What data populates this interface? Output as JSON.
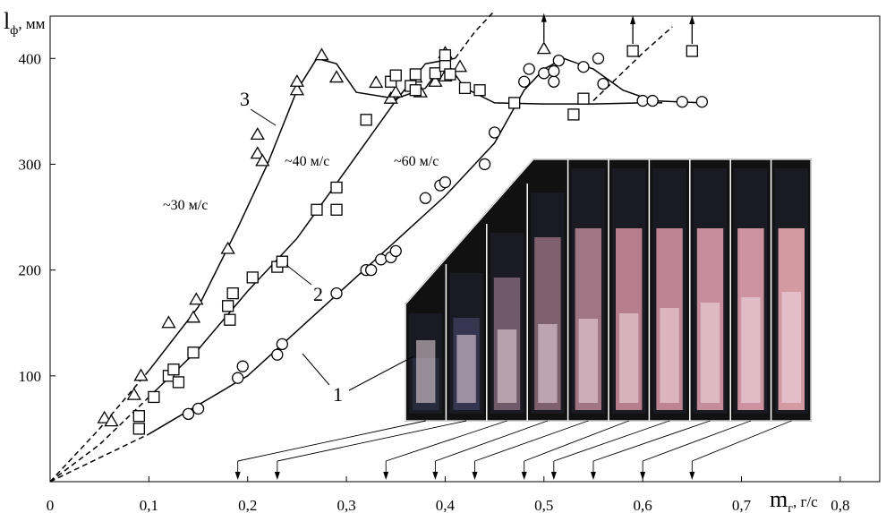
{
  "chart_data": {
    "type": "scatter",
    "title": "",
    "xlabel": {
      "main": "m",
      "sub": "г",
      "unit": ", г/с"
    },
    "ylabel": {
      "main": "l",
      "sub": "ф",
      "unit": ", мм"
    },
    "xlim": [
      0,
      0.84
    ],
    "ylim": [
      0,
      440
    ],
    "x_ticks": [
      0,
      0.1,
      0.2,
      0.3,
      0.4,
      0.5,
      0.6,
      0.7,
      0.8
    ],
    "x_tick_labels": [
      "0",
      "0,1",
      "0,2",
      "0,3",
      "0,4",
      "0,5",
      "0,6",
      "0,7",
      "0,8"
    ],
    "y_ticks": [
      100,
      200,
      300,
      400
    ],
    "y_tick_labels": [
      "100",
      "200",
      "300",
      "400"
    ],
    "grid": false,
    "series": [
      {
        "name": "3",
        "marker": "triangle",
        "points": [
          [
            0.055,
            60
          ],
          [
            0.062,
            57
          ],
          [
            0.085,
            82
          ],
          [
            0.092,
            100
          ],
          [
            0.12,
            150
          ],
          [
            0.145,
            155
          ],
          [
            0.148,
            172
          ],
          [
            0.18,
            220
          ],
          [
            0.21,
            310
          ],
          [
            0.21,
            328
          ],
          [
            0.215,
            303
          ],
          [
            0.25,
            370
          ],
          [
            0.25,
            378
          ],
          [
            0.275,
            403
          ],
          [
            0.29,
            382
          ],
          [
            0.33,
            377
          ],
          [
            0.345,
            362
          ],
          [
            0.35,
            368
          ],
          [
            0.37,
            382
          ],
          [
            0.375,
            368
          ],
          [
            0.39,
            378
          ],
          [
            0.4,
            383
          ],
          [
            0.4,
            405
          ],
          [
            0.415,
            392
          ],
          [
            0.5,
            409
          ]
        ],
        "fit": [
          [
            0,
            0
          ],
          [
            0.05,
            50
          ],
          [
            0.1,
            105
          ],
          [
            0.15,
            165
          ],
          [
            0.19,
            240
          ],
          [
            0.22,
            300
          ],
          [
            0.25,
            370
          ],
          [
            0.27,
            400
          ],
          [
            0.29,
            395
          ],
          [
            0.31,
            368
          ],
          [
            0.35,
            362
          ],
          [
            0.38,
            372
          ],
          [
            0.4,
            398
          ],
          [
            0.42,
            372
          ],
          [
            0.45,
            358
          ],
          [
            0.5,
            357
          ],
          [
            0.55,
            357
          ],
          [
            0.6,
            358
          ],
          [
            0.62,
            358
          ]
        ],
        "label": "~30 м/с"
      },
      {
        "name": "2",
        "marker": "square",
        "points": [
          [
            0.09,
            62
          ],
          [
            0.09,
            50
          ],
          [
            0.105,
            80
          ],
          [
            0.12,
            100
          ],
          [
            0.125,
            106
          ],
          [
            0.13,
            94
          ],
          [
            0.145,
            122
          ],
          [
            0.18,
            166
          ],
          [
            0.182,
            153
          ],
          [
            0.185,
            178
          ],
          [
            0.205,
            193
          ],
          [
            0.23,
            203
          ],
          [
            0.235,
            208
          ],
          [
            0.27,
            257
          ],
          [
            0.29,
            257
          ],
          [
            0.29,
            278
          ],
          [
            0.32,
            342
          ],
          [
            0.345,
            378
          ],
          [
            0.35,
            384
          ],
          [
            0.365,
            374
          ],
          [
            0.37,
            385
          ],
          [
            0.37,
            370
          ],
          [
            0.39,
            386
          ],
          [
            0.4,
            393
          ],
          [
            0.4,
            403
          ],
          [
            0.405,
            385
          ],
          [
            0.42,
            372
          ],
          [
            0.435,
            370
          ],
          [
            0.47,
            358
          ],
          [
            0.53,
            347
          ],
          [
            0.54,
            362
          ],
          [
            0.59,
            407
          ],
          [
            0.65,
            407
          ]
        ],
        "fit": [
          [
            0,
            0
          ],
          [
            0.05,
            35
          ],
          [
            0.1,
            80
          ],
          [
            0.15,
            125
          ],
          [
            0.2,
            180
          ],
          [
            0.25,
            230
          ],
          [
            0.3,
            295
          ],
          [
            0.35,
            360
          ],
          [
            0.38,
            395
          ],
          [
            0.41,
            400
          ],
          [
            0.43,
            425
          ],
          [
            0.45,
            445
          ]
        ],
        "label": "~40 м/с"
      },
      {
        "name": "1",
        "marker": "circle",
        "points": [
          [
            0.14,
            64
          ],
          [
            0.15,
            69
          ],
          [
            0.19,
            98
          ],
          [
            0.195,
            109
          ],
          [
            0.23,
            120
          ],
          [
            0.235,
            130
          ],
          [
            0.29,
            178
          ],
          [
            0.32,
            200
          ],
          [
            0.325,
            200
          ],
          [
            0.335,
            210
          ],
          [
            0.345,
            212
          ],
          [
            0.35,
            218
          ],
          [
            0.38,
            268
          ],
          [
            0.395,
            280
          ],
          [
            0.4,
            283
          ],
          [
            0.44,
            300
          ],
          [
            0.45,
            330
          ],
          [
            0.48,
            378
          ],
          [
            0.485,
            390
          ],
          [
            0.5,
            386
          ],
          [
            0.51,
            378
          ],
          [
            0.51,
            388
          ],
          [
            0.515,
            398
          ],
          [
            0.54,
            392
          ],
          [
            0.555,
            400
          ],
          [
            0.56,
            376
          ],
          [
            0.6,
            360
          ],
          [
            0.61,
            360
          ],
          [
            0.64,
            359
          ],
          [
            0.66,
            359
          ]
        ],
        "fit": [
          [
            0,
            0
          ],
          [
            0.1,
            45
          ],
          [
            0.2,
            100
          ],
          [
            0.3,
            185
          ],
          [
            0.4,
            270
          ],
          [
            0.45,
            320
          ],
          [
            0.48,
            370
          ],
          [
            0.5,
            390
          ],
          [
            0.52,
            400
          ],
          [
            0.55,
            390
          ],
          [
            0.58,
            370
          ],
          [
            0.61,
            360
          ],
          [
            0.66,
            358
          ]
        ],
        "label": "~60 м/с"
      }
    ],
    "extra_fit_lines": [
      {
        "series": "1",
        "points": [
          [
            0.55,
            360
          ],
          [
            0.6,
            405
          ],
          [
            0.63,
            430
          ]
        ]
      }
    ],
    "arrow_up_markers": [
      [
        0.5,
        409
      ],
      [
        0.59,
        407
      ],
      [
        0.65,
        407
      ]
    ],
    "curve_numbers": [
      "1",
      "2",
      "3"
    ],
    "speed_labels": [
      "~30 м/с",
      "~40 м/с",
      "~60 м/с"
    ],
    "photo_strip": {
      "frame_count": 10,
      "arrow_x_values": [
        0.19,
        0.23,
        0.34,
        0.39,
        0.43,
        0.48,
        0.51,
        0.55,
        0.6,
        0.65
      ],
      "frame_colors": [
        "#2a3040",
        "#3a3a55",
        "#7a6070",
        "#8a6878",
        "#b0808f",
        "#c88898",
        "#d090a0",
        "#d89aa8",
        "#e0a0ad",
        "#e8a8b0"
      ]
    }
  }
}
